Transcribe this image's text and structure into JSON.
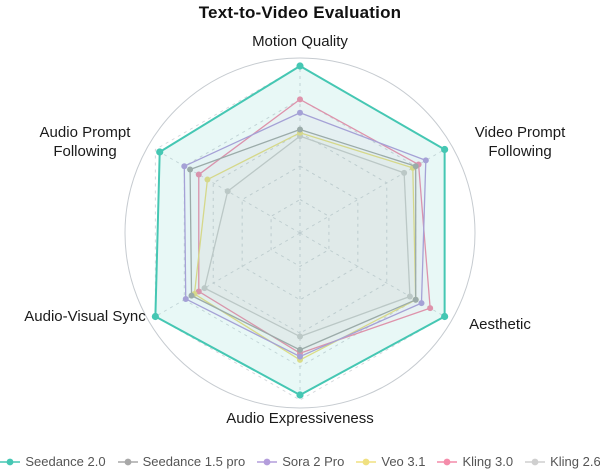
{
  "chart_data": {
    "type": "radar",
    "title": "Text-to-Video Evaluation",
    "categories": [
      "Motion Quality",
      "Video Prompt Following",
      "Aesthetic",
      "Audio Expressiveness",
      "Audio-Visual Sync",
      "Audio Prompt Following"
    ],
    "rlim": [
      0,
      1
    ],
    "grid": "dashed hexagonal rings with dashed radial spokes and solid outer circle",
    "legend_position": "bottom",
    "series": [
      {
        "name": "Seedance 2.0",
        "color": "#45c7b3",
        "values": [
          1.0,
          1.0,
          1.0,
          0.97,
          1.0,
          0.97
        ]
      },
      {
        "name": "Seedance 1.5 pro",
        "color": "#a8a8a8",
        "values": [
          0.62,
          0.8,
          0.8,
          0.7,
          0.75,
          0.76
        ]
      },
      {
        "name": "Sora 2 Pro",
        "color": "#b39ddb",
        "values": [
          0.72,
          0.87,
          0.84,
          0.74,
          0.79,
          0.8
        ]
      },
      {
        "name": "Veo 3.1",
        "color": "#f0e080",
        "values": [
          0.6,
          0.78,
          0.8,
          0.76,
          0.73,
          0.64
        ]
      },
      {
        "name": "Kling 3.0",
        "color": "#f48caa",
        "values": [
          0.8,
          0.82,
          0.9,
          0.72,
          0.7,
          0.7
        ]
      },
      {
        "name": "Kling 2.6",
        "color": "#cfcfcf",
        "values": [
          0.58,
          0.72,
          0.76,
          0.62,
          0.66,
          0.5
        ]
      }
    ]
  }
}
